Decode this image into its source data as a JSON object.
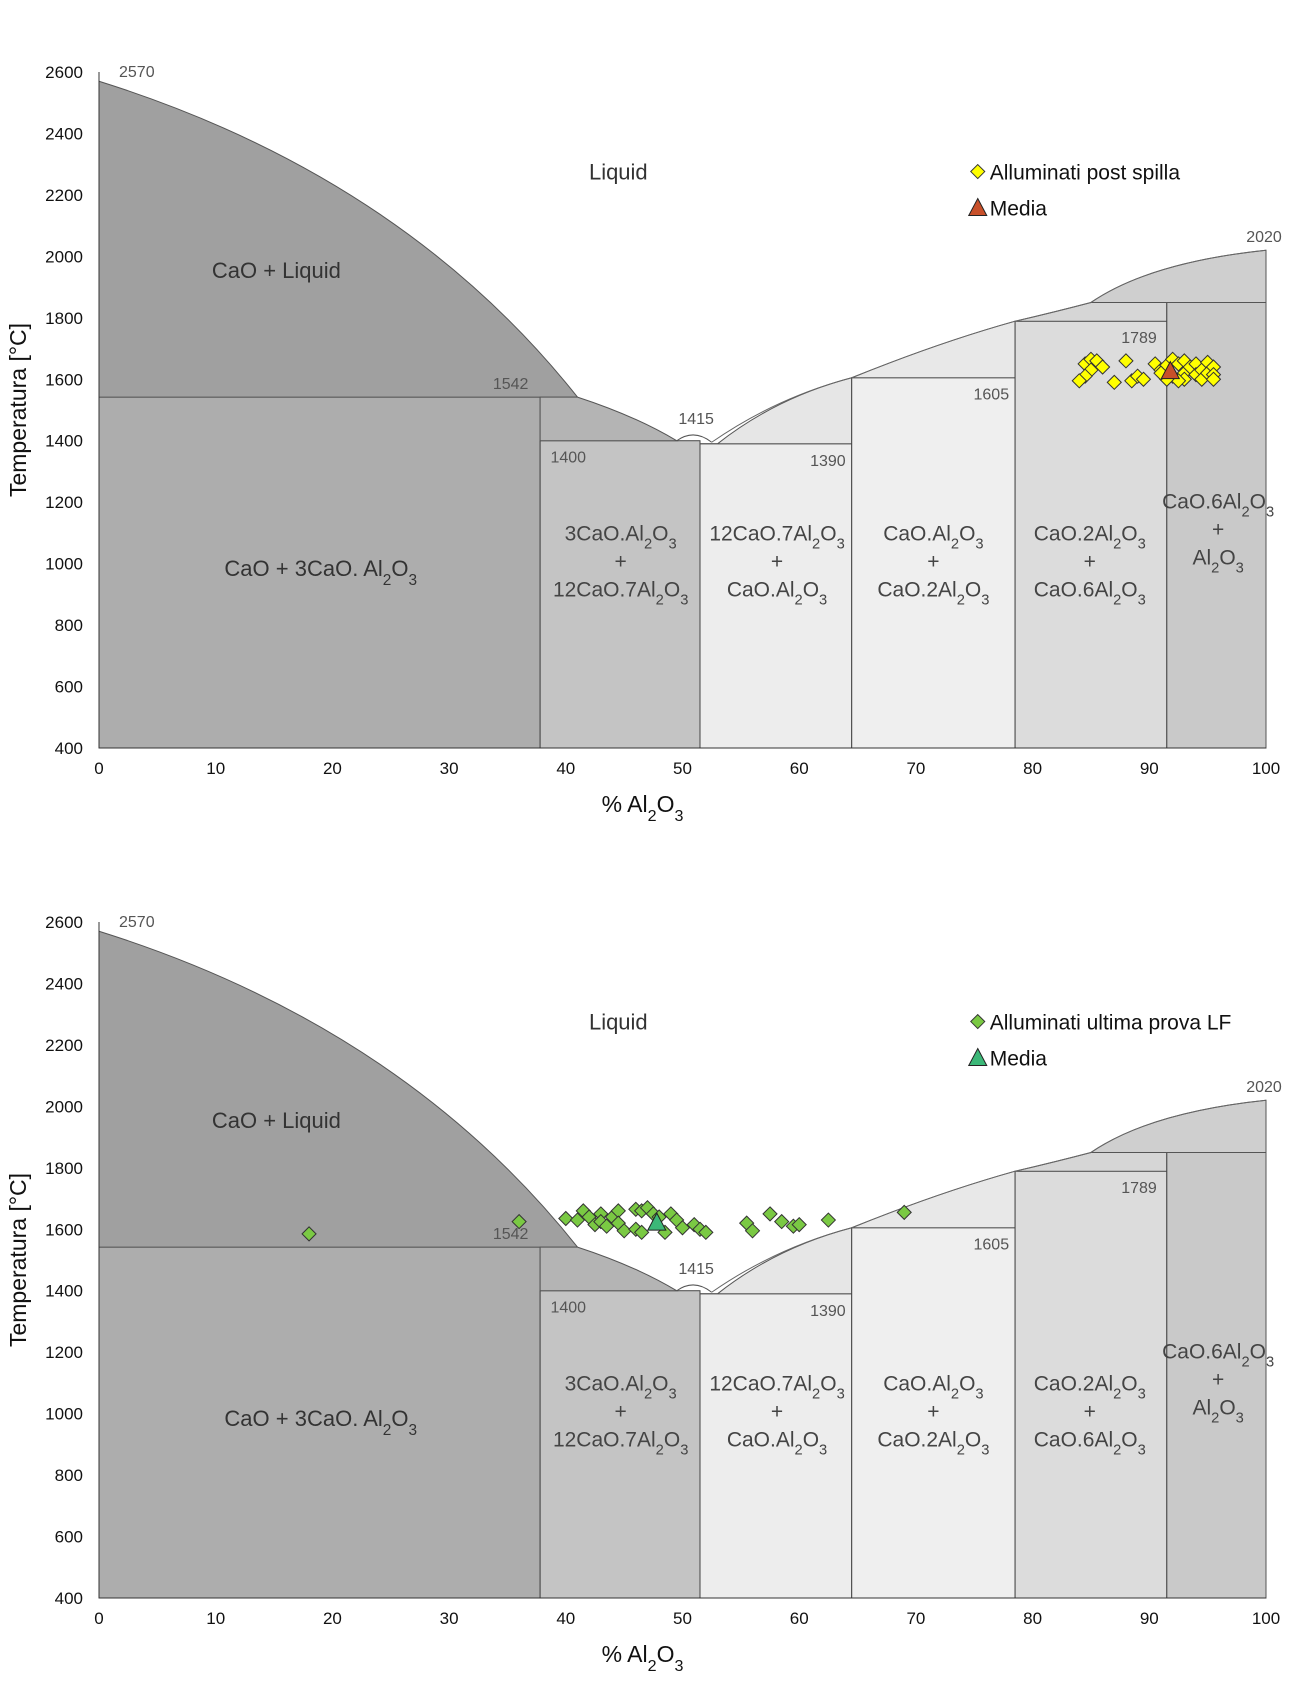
{
  "chart_data": [
    {
      "type": "scatter",
      "x_range": [
        0,
        100
      ],
      "y_range": [
        400,
        2600
      ],
      "xlabel_prefix": "% Al",
      "xlabel_sub1": "2",
      "xlabel_mid": "O",
      "xlabel_sub2": "3",
      "ylabel": "Temperatura [°C]",
      "x_ticks": [
        "0",
        "10",
        "20",
        "30",
        "40",
        "50",
        "60",
        "70",
        "80",
        "90",
        "100"
      ],
      "y_ticks": [
        "400",
        "600",
        "800",
        "1000",
        "1200",
        "1400",
        "1600",
        "1800",
        "2000",
        "2200",
        "2400",
        "2600"
      ],
      "temperature_labels": [
        "2570",
        "1542",
        "1415",
        "1400",
        "1390",
        "1605",
        "1789",
        "2020"
      ],
      "region_labels": {
        "liquid": "Liquid",
        "cao_liquid": "CaO + Liquid",
        "cao_3ca": "CaO + 3CaO. Al2O3",
        "c3a_c12a7": "3CaO.Al2O3 + 12CaO.7Al2O3",
        "c12a7_ca": "12CaO.7Al2O3 + CaO.Al2O3",
        "ca_ca2": "CaO.Al2O3 + CaO.2Al2O3",
        "ca2_ca6": "CaO.2Al2O3 + CaO.6Al2O3",
        "ca6_al2o3": "CaO.6Al2O3 + Al2O3"
      },
      "series": [
        {
          "name": "Alluminati post spilla",
          "marker": "diamond",
          "color": "#ffff00",
          "points": [
            [
              84.5,
              1650
            ],
            [
              85,
              1665
            ],
            [
              85.5,
              1660
            ],
            [
              85,
              1630
            ],
            [
              84.5,
              1610
            ],
            [
              84,
              1595
            ],
            [
              86,
              1640
            ],
            [
              87,
              1590
            ],
            [
              88,
              1660
            ],
            [
              88.5,
              1595
            ],
            [
              89,
              1610
            ],
            [
              89.5,
              1600
            ],
            [
              90.5,
              1650
            ],
            [
              91,
              1630
            ],
            [
              91.5,
              1645
            ],
            [
              92,
              1665
            ],
            [
              92.5,
              1650
            ],
            [
              92,
              1610
            ],
            [
              93,
              1660
            ],
            [
              93,
              1620
            ],
            [
              93.5,
              1640
            ],
            [
              94,
              1650
            ],
            [
              94,
              1615
            ],
            [
              94.5,
              1630
            ],
            [
              94.5,
              1600
            ],
            [
              95,
              1655
            ],
            [
              95,
              1620
            ],
            [
              95.5,
              1640
            ],
            [
              95.5,
              1615
            ],
            [
              95.5,
              1600
            ],
            [
              93,
              1600
            ],
            [
              92.5,
              1595
            ],
            [
              91.5,
              1600
            ],
            [
              91,
              1620
            ]
          ]
        },
        {
          "name": "Media",
          "marker": "triangle",
          "color": "#c8502a",
          "points": [
            [
              91.8,
              1625
            ]
          ]
        }
      ]
    },
    {
      "type": "scatter",
      "x_range": [
        0,
        100
      ],
      "y_range": [
        400,
        2600
      ],
      "xlabel_prefix": "% Al",
      "xlabel_sub1": "2",
      "xlabel_mid": "O",
      "xlabel_sub2": "3",
      "ylabel": "Temperatura [°C]",
      "x_ticks": [
        "0",
        "10",
        "20",
        "30",
        "40",
        "50",
        "60",
        "70",
        "80",
        "90",
        "100"
      ],
      "y_ticks": [
        "400",
        "600",
        "800",
        "1000",
        "1200",
        "1400",
        "1600",
        "1800",
        "2000",
        "2200",
        "2400",
        "2600"
      ],
      "temperature_labels": [
        "2570",
        "1542",
        "1415",
        "1400",
        "1390",
        "1605",
        "1789",
        "2020"
      ],
      "region_labels": {
        "liquid": "Liquid",
        "cao_liquid": "CaO + Liquid",
        "cao_3ca": "CaO + 3CaO. Al2O3",
        "c3a_c12a7": "3CaO.Al2O3 + 12CaO.7Al2O3",
        "c12a7_ca": "12CaO.7Al2O3 + CaO.Al2O3",
        "ca_ca2": "CaO.Al2O3 + CaO.2Al2O3",
        "ca2_ca6": "CaO.2Al2O3 + CaO.6Al2O3",
        "ca6_al2o3": "CaO.6Al2O3 + Al2O3"
      },
      "series": [
        {
          "name": "Alluminati ultima prova LF",
          "marker": "diamond",
          "color": "#7ac943",
          "points": [
            [
              18,
              1585
            ],
            [
              36,
              1625
            ],
            [
              40,
              1635
            ],
            [
              41,
              1630
            ],
            [
              41.5,
              1660
            ],
            [
              42,
              1640
            ],
            [
              42.5,
              1615
            ],
            [
              43,
              1650
            ],
            [
              43,
              1625
            ],
            [
              43.5,
              1610
            ],
            [
              44,
              1640
            ],
            [
              44.5,
              1660
            ],
            [
              44.5,
              1620
            ],
            [
              45,
              1595
            ],
            [
              46,
              1665
            ],
            [
              46,
              1600
            ],
            [
              46.5,
              1660
            ],
            [
              46.5,
              1590
            ],
            [
              47,
              1670
            ],
            [
              47.5,
              1650
            ],
            [
              48,
              1640
            ],
            [
              48.5,
              1590
            ],
            [
              49,
              1650
            ],
            [
              49.5,
              1630
            ],
            [
              50,
              1605
            ],
            [
              51,
              1615
            ],
            [
              51.5,
              1600
            ],
            [
              52,
              1590
            ],
            [
              55.5,
              1620
            ],
            [
              56,
              1595
            ],
            [
              57.5,
              1650
            ],
            [
              58.5,
              1625
            ],
            [
              59.5,
              1610
            ],
            [
              60,
              1615
            ],
            [
              62.5,
              1630
            ],
            [
              69,
              1655
            ]
          ]
        },
        {
          "name": "Media",
          "marker": "triangle",
          "color": "#3cb878",
          "points": [
            [
              47.8,
              1620
            ]
          ]
        }
      ]
    }
  ]
}
